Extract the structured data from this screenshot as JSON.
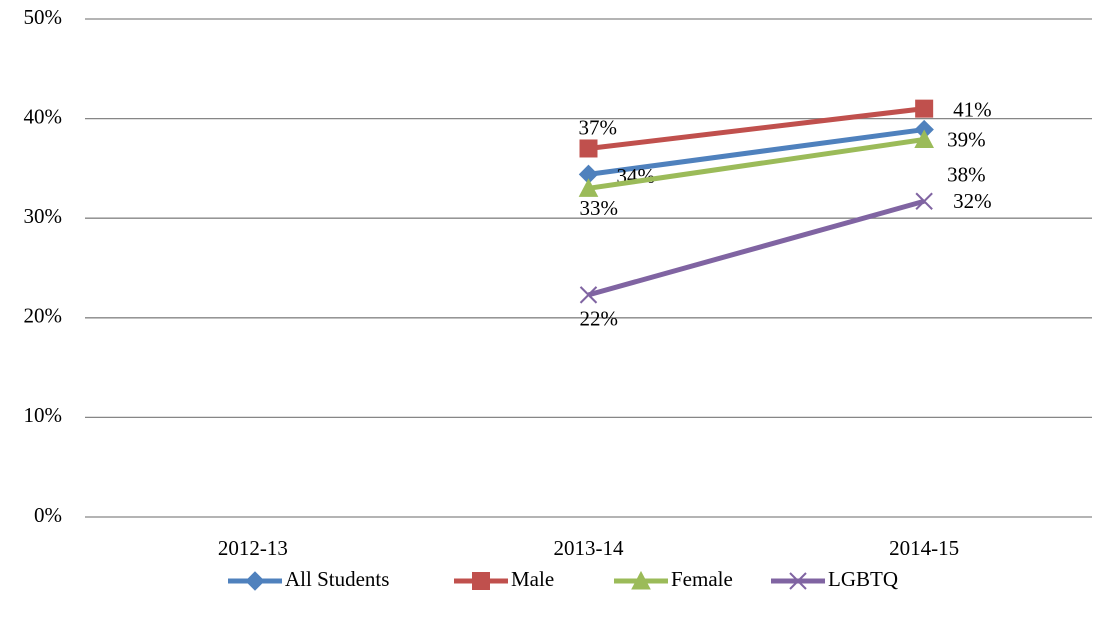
{
  "chart_data": {
    "type": "line",
    "categories": [
      "2012-13",
      "2013-14",
      "2014-15"
    ],
    "series": [
      {
        "name": "All Students",
        "color": "#4f81bd",
        "marker": "diamond",
        "values": [
          null,
          34.4,
          38.9
        ],
        "value_labels": [
          null,
          "34%",
          "39%"
        ]
      },
      {
        "name": "Male",
        "color": "#c0504d",
        "marker": "square",
        "values": [
          null,
          37,
          41
        ],
        "value_labels": [
          null,
          "37%",
          "41%"
        ]
      },
      {
        "name": "Female",
        "color": "#9bbb59",
        "marker": "triangle",
        "values": [
          null,
          33,
          37.9
        ],
        "value_labels": [
          null,
          "33%",
          "38%"
        ]
      },
      {
        "name": "LGBTQ",
        "color": "#8064a2",
        "marker": "x",
        "values": [
          null,
          22.3,
          31.7
        ],
        "value_labels": [
          null,
          "22%",
          "32%"
        ]
      }
    ],
    "ylim": [
      0,
      50
    ],
    "yticks": [
      {
        "value": 0,
        "label": "0%"
      },
      {
        "value": 10,
        "label": "10%"
      },
      {
        "value": 20,
        "label": "20%"
      },
      {
        "value": 30,
        "label": "30%"
      },
      {
        "value": 40,
        "label": "40%"
      },
      {
        "value": 50,
        "label": "50%"
      }
    ],
    "grid": true,
    "legend": "bottom"
  }
}
